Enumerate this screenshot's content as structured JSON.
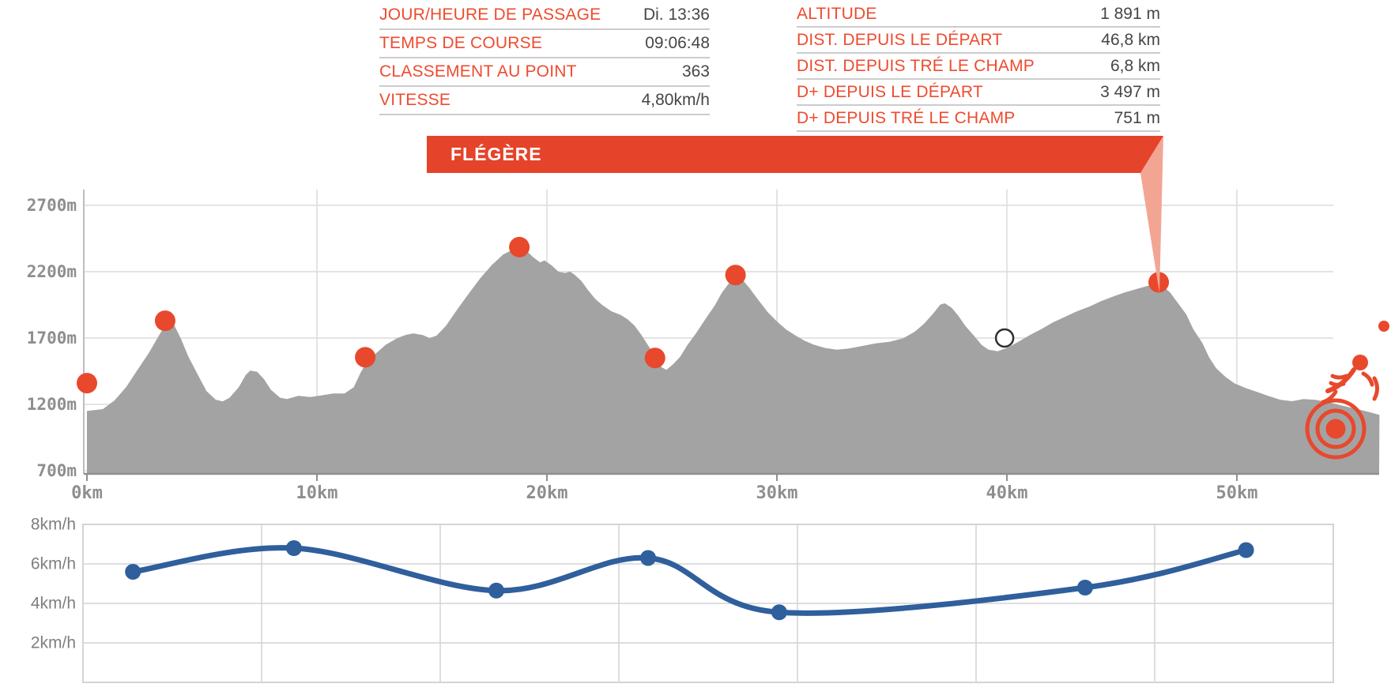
{
  "colors": {
    "accent_orange": "#ee4b2f",
    "banner_red": "#e5432a",
    "callout_salmon": "#f3a593",
    "value_text": "#46464a",
    "separator": "#cccccc",
    "terrain_gray": "#a3a3a3",
    "grid_gray": "#dcdcdc",
    "axis_label_gray": "#8e8e8e",
    "speed_blue": "#2f5f9c",
    "white_dot_stroke": "#2f2f2f"
  },
  "info_panels": {
    "left": {
      "rows": [
        {
          "label": "JOUR/HEURE DE PASSAGE",
          "value": "Di. 13:36"
        },
        {
          "label": "TEMPS DE COURSE",
          "value": "09:06:48"
        },
        {
          "label": "CLASSEMENT AU POINT",
          "value": "363"
        },
        {
          "label": "VITESSE",
          "value": "4,80km/h"
        }
      ]
    },
    "right": {
      "rows": [
        {
          "label": "ALTITUDE",
          "value": "1 891 m"
        },
        {
          "label": "DIST. DEPUIS LE DÉPART",
          "value": "46,8 km"
        },
        {
          "label": "DIST. DEPUIS TRÉ LE CHAMP",
          "value": "6,8 km"
        },
        {
          "label": "D+ DEPUIS LE DÉPART",
          "value": "3 497 m"
        },
        {
          "label": "D+ DEPUIS TRÉ LE CHAMP",
          "value": "751 m"
        }
      ]
    }
  },
  "banner": {
    "label": "FLÉGÈRE"
  },
  "chart_data": [
    {
      "type": "area",
      "title": "Elevation profile",
      "x_unit": "km",
      "y_unit": "m",
      "xlim": [
        0,
        56.2
      ],
      "ylim": [
        700,
        2700
      ],
      "x_tick_values": [
        0,
        10,
        20,
        30,
        40,
        50
      ],
      "x_tick_labels": [
        "0km",
        "10km",
        "20km",
        "30km",
        "40km",
        "50km"
      ],
      "y_tick_values": [
        2700,
        2200,
        1700,
        1200,
        700
      ],
      "y_tick_labels": [
        "2700m",
        "2200m",
        "1700m",
        "1200m",
        "700m"
      ],
      "grid": true,
      "checkpoints": [
        {
          "km": 0.0,
          "alt": 1360,
          "style": "passed"
        },
        {
          "km": 3.4,
          "alt": 1830,
          "style": "passed"
        },
        {
          "km": 12.1,
          "alt": 1555,
          "style": "passed"
        },
        {
          "km": 18.8,
          "alt": 2385,
          "style": "passed"
        },
        {
          "km": 24.7,
          "alt": 1550,
          "style": "passed"
        },
        {
          "km": 28.2,
          "alt": 2175,
          "style": "passed"
        },
        {
          "km": 39.9,
          "alt": 1700,
          "style": "upcoming"
        },
        {
          "km": 46.6,
          "alt": 2120,
          "style": "selected",
          "name": "FLÉGÈRE"
        }
      ],
      "profile": [
        [
          0,
          1150
        ],
        [
          0.7,
          1165
        ],
        [
          1.2,
          1230
        ],
        [
          1.7,
          1330
        ],
        [
          2.2,
          1460
        ],
        [
          2.7,
          1590
        ],
        [
          3.1,
          1710
        ],
        [
          3.4,
          1795
        ],
        [
          3.55,
          1820
        ],
        [
          3.8,
          1795
        ],
        [
          4.1,
          1690
        ],
        [
          4.4,
          1565
        ],
        [
          4.8,
          1430
        ],
        [
          5.2,
          1300
        ],
        [
          5.6,
          1235
        ],
        [
          5.9,
          1222
        ],
        [
          6.2,
          1250
        ],
        [
          6.6,
          1330
        ],
        [
          6.9,
          1420
        ],
        [
          7.1,
          1455
        ],
        [
          7.4,
          1445
        ],
        [
          7.7,
          1390
        ],
        [
          8.0,
          1310
        ],
        [
          8.4,
          1250
        ],
        [
          8.7,
          1240
        ],
        [
          9.2,
          1265
        ],
        [
          9.7,
          1255
        ],
        [
          10.2,
          1268
        ],
        [
          10.7,
          1282
        ],
        [
          11.2,
          1282
        ],
        [
          11.6,
          1330
        ],
        [
          11.9,
          1440
        ],
        [
          12.2,
          1530
        ],
        [
          12.6,
          1590
        ],
        [
          13.0,
          1650
        ],
        [
          13.5,
          1700
        ],
        [
          13.9,
          1725
        ],
        [
          14.2,
          1735
        ],
        [
          14.6,
          1722
        ],
        [
          14.9,
          1700
        ],
        [
          15.2,
          1718
        ],
        [
          15.6,
          1790
        ],
        [
          16.1,
          1915
        ],
        [
          16.6,
          2035
        ],
        [
          17.1,
          2150
        ],
        [
          17.6,
          2250
        ],
        [
          18.1,
          2330
        ],
        [
          18.5,
          2365
        ],
        [
          18.8,
          2385
        ],
        [
          19.1,
          2360
        ],
        [
          19.4,
          2310
        ],
        [
          19.7,
          2270
        ],
        [
          19.9,
          2285
        ],
        [
          20.2,
          2248
        ],
        [
          20.5,
          2200
        ],
        [
          20.8,
          2190
        ],
        [
          21.0,
          2202
        ],
        [
          21.2,
          2178
        ],
        [
          21.5,
          2130
        ],
        [
          21.8,
          2058
        ],
        [
          22.1,
          1995
        ],
        [
          22.4,
          1950
        ],
        [
          22.8,
          1902
        ],
        [
          23.2,
          1875
        ],
        [
          23.5,
          1842
        ],
        [
          23.8,
          1795
        ],
        [
          24.1,
          1725
        ],
        [
          24.4,
          1645
        ],
        [
          24.7,
          1560
        ],
        [
          25.0,
          1478
        ],
        [
          25.2,
          1460
        ],
        [
          25.5,
          1505
        ],
        [
          25.8,
          1560
        ],
        [
          26.1,
          1645
        ],
        [
          26.5,
          1740
        ],
        [
          26.9,
          1845
        ],
        [
          27.3,
          1945
        ],
        [
          27.6,
          2040
        ],
        [
          27.9,
          2110
        ],
        [
          28.1,
          2160
        ],
        [
          28.25,
          2178
        ],
        [
          28.5,
          2140
        ],
        [
          28.8,
          2078
        ],
        [
          29.2,
          1985
        ],
        [
          29.6,
          1895
        ],
        [
          30.0,
          1825
        ],
        [
          30.4,
          1765
        ],
        [
          30.8,
          1720
        ],
        [
          31.2,
          1680
        ],
        [
          31.6,
          1650
        ],
        [
          32.1,
          1625
        ],
        [
          32.6,
          1612
        ],
        [
          33.1,
          1620
        ],
        [
          33.7,
          1640
        ],
        [
          34.3,
          1660
        ],
        [
          34.9,
          1672
        ],
        [
          35.5,
          1698
        ],
        [
          36.0,
          1748
        ],
        [
          36.4,
          1808
        ],
        [
          36.8,
          1885
        ],
        [
          37.1,
          1952
        ],
        [
          37.3,
          1962
        ],
        [
          37.6,
          1928
        ],
        [
          37.9,
          1865
        ],
        [
          38.2,
          1790
        ],
        [
          38.6,
          1710
        ],
        [
          38.9,
          1648
        ],
        [
          39.2,
          1612
        ],
        [
          39.6,
          1600
        ],
        [
          40.0,
          1625
        ],
        [
          40.5,
          1672
        ],
        [
          41.0,
          1722
        ],
        [
          41.5,
          1768
        ],
        [
          42.0,
          1818
        ],
        [
          42.5,
          1858
        ],
        [
          43.0,
          1898
        ],
        [
          43.6,
          1938
        ],
        [
          44.1,
          1978
        ],
        [
          44.6,
          2012
        ],
        [
          45.1,
          2042
        ],
        [
          45.6,
          2068
        ],
        [
          46.1,
          2092
        ],
        [
          46.55,
          2110
        ],
        [
          46.8,
          2088
        ],
        [
          47.1,
          2042
        ],
        [
          47.4,
          1972
        ],
        [
          47.8,
          1878
        ],
        [
          48.1,
          1768
        ],
        [
          48.5,
          1662
        ],
        [
          48.8,
          1552
        ],
        [
          49.1,
          1472
        ],
        [
          49.5,
          1408
        ],
        [
          49.9,
          1358
        ],
        [
          50.4,
          1322
        ],
        [
          50.9,
          1292
        ],
        [
          51.4,
          1262
        ],
        [
          51.9,
          1234
        ],
        [
          52.4,
          1224
        ],
        [
          52.9,
          1240
        ],
        [
          53.4,
          1234
        ],
        [
          53.9,
          1220
        ],
        [
          54.4,
          1198
        ],
        [
          54.9,
          1178
        ],
        [
          55.4,
          1158
        ],
        [
          55.9,
          1135
        ],
        [
          56.2,
          1120
        ]
      ]
    },
    {
      "type": "line",
      "title": "Speed",
      "x_unit": "km",
      "y_unit": "km/h",
      "ylim": [
        0,
        8
      ],
      "y_tick_values": [
        8,
        6,
        4,
        2
      ],
      "y_tick_labels": [
        "8km/h",
        "6km/h",
        "4km/h",
        "2km/h"
      ],
      "grid": true,
      "points": [
        {
          "km": 2.0,
          "speed": 5.6
        },
        {
          "km": 9.0,
          "speed": 6.8
        },
        {
          "km": 17.8,
          "speed": 4.65
        },
        {
          "km": 24.4,
          "speed": 6.3
        },
        {
          "km": 30.1,
          "speed": 3.55
        },
        {
          "km": 43.4,
          "speed": 4.8
        },
        {
          "km": 50.4,
          "speed": 6.7
        }
      ]
    }
  ]
}
